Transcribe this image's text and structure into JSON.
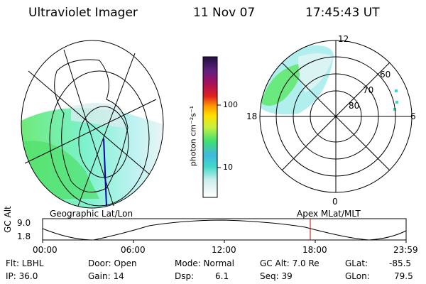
{
  "header": {
    "instrument": "Ultraviolet Imager",
    "date": "11 Nov 07",
    "time": "17:45:43 UT"
  },
  "left_panel": {
    "label": "Geographic Lat/Lon"
  },
  "right_panel": {
    "label": "Apex MLat/MLT",
    "mlt_labels": {
      "top": "12",
      "left": "18",
      "right": "6",
      "bottom": "0"
    },
    "mlat_labels": [
      "60",
      "70",
      "80"
    ]
  },
  "colorbar": {
    "unit_label": "photon cm⁻²s⁻¹",
    "ticks": [
      "100",
      "10"
    ]
  },
  "orbit": {
    "ylabel": "GC Alt",
    "ytick_top": "9.0",
    "ytick_bottom": "1.8",
    "xticks": [
      "00:00",
      "06:00",
      "12:00",
      "18:00",
      "23:59"
    ],
    "marker_color": "#cc0000"
  },
  "footer": {
    "flt": "Flt: LBHL",
    "ip": "IP: 36.0",
    "door": "Door: Open",
    "gain": "Gain: 14",
    "mode": "Mode: Normal",
    "dsp_label": "Dsp:",
    "dsp_value": "6.1",
    "gc_alt": "GC Alt: 7.0 Re",
    "seq": "Seq: 39",
    "glat_label": "GLat:",
    "glat_value": "-85.5",
    "glon_label": "GLon:",
    "glon_value": "79.5"
  }
}
